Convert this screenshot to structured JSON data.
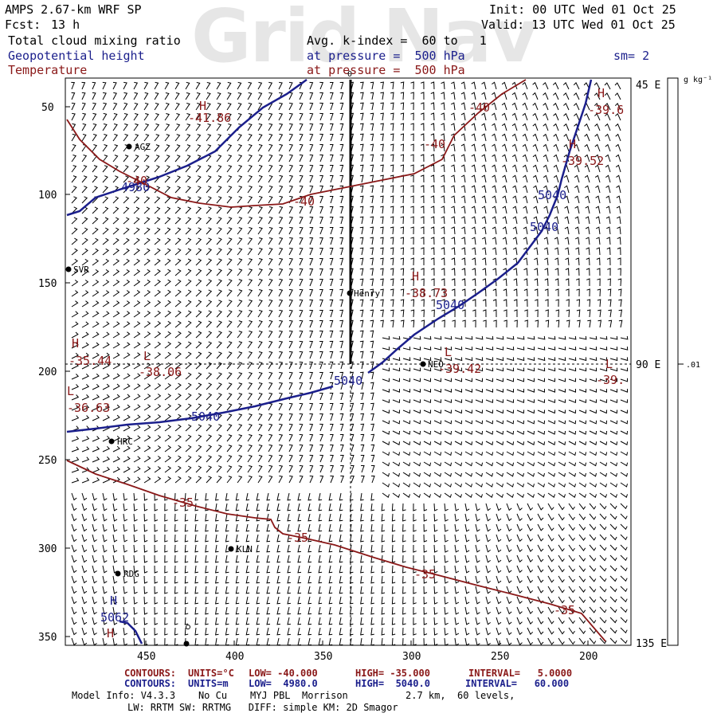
{
  "watermark": "Grid Nav",
  "header": {
    "model": "AMPS 2.67-km WRF SP",
    "fcst_label": "Fcst:",
    "fcst_value": "13 h",
    "init": "Init: 00 UTC Wed 01 Oct 25",
    "valid": "Valid: 13 UTC Wed 01 Oct 25",
    "field1": "Total cloud mixing ratio",
    "field2": "Geopotential height",
    "field3": "Temperature",
    "avg": "Avg. k-index =  60 to   1",
    "press1": "at pressure =  500 hPa",
    "press2": "at pressure =  500 hPa",
    "sm": "sm= 2"
  },
  "axes": {
    "y_ticks": [
      "50",
      "100",
      "150",
      "200",
      "250",
      "300",
      "350"
    ],
    "x_ticks": [
      "450",
      "400",
      "350",
      "300",
      "250",
      "200"
    ],
    "right_top": "45 E",
    "right_mid": "90 E",
    "right_bot": "135 E",
    "top_zero": "0"
  },
  "colorbar": {
    "unit": "g kg⁻¹",
    "value": ".01"
  },
  "stations": [
    {
      "id": "AGZ"
    },
    {
      "id": "SVR"
    },
    {
      "id": "Henry"
    },
    {
      "id": "NEO"
    },
    {
      "id": "HRC"
    },
    {
      "id": "KLN"
    },
    {
      "id": "RDG"
    }
  ],
  "height_labels": [
    "4980",
    "5040",
    "5040",
    "5040",
    "5040",
    "5040",
    "5062"
  ],
  "temp_labels": [
    "-41.86",
    "-40",
    "-40",
    "-40",
    "-40",
    "-39.6",
    "-39.52",
    "-38.73",
    "-38.06",
    "-39.42",
    "-39.",
    "-35.44",
    "-36.63",
    "-35",
    "-35",
    "-35",
    "-35"
  ],
  "hl_marks": [
    "H",
    "H",
    "H",
    "H",
    "L",
    "L",
    "L",
    "L",
    "H",
    "H",
    "H"
  ],
  "footer": {
    "r1_label": "CONTOURS:",
    "r1_units": "UNITS=°C",
    "r1_low": "LOW= -40.000",
    "r1_high": "HIGH= -35.000",
    "r1_int": "INTERVAL=   5.0000",
    "r2_label": "CONTOURS:",
    "r2_units": "UNITS=m",
    "r2_low": "LOW=  4980.0",
    "r2_high": "HIGH=  5040.0",
    "r2_int": "INTERVAL=   60.000",
    "r3": "Model Info: V4.3.3    No Cu    MYJ PBL  Morrison          2.7 km,  60 levels,",
    "r4": "LW: RRTM SW: RRTMG   DIFF: simple KM: 2D Smagor"
  },
  "colors": {
    "height": "#1b1f8c",
    "temperature": "#8a1818",
    "barbs": "#000000"
  }
}
